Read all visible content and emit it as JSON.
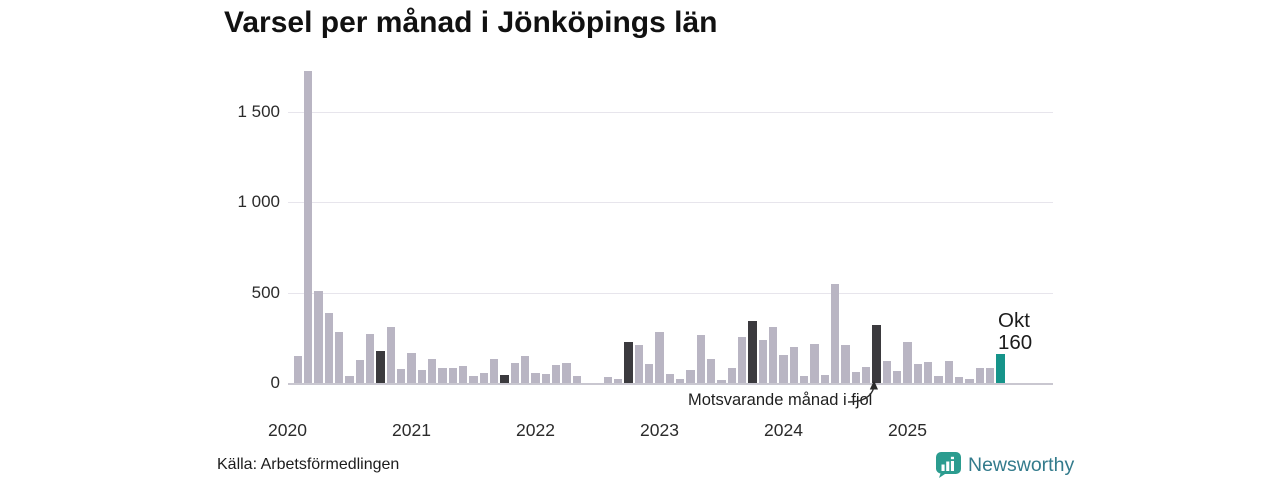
{
  "title": "Varsel per månad i Jönköpings län",
  "source": "Källa: Arbetsförmedlingen",
  "annotation": {
    "text": "Motsvarande månad i fjol",
    "target_month": "2024-10"
  },
  "highlight_label": {
    "month": "Okt",
    "value": "160"
  },
  "branding": {
    "name": "Newsworthy"
  },
  "colors": {
    "bar": "#b9b5c3",
    "bar_fjol": "#3b3a3e",
    "bar_current": "#16948a",
    "grid": "#e7e5ec",
    "baseline": "#c9c7d0",
    "brand_icon": "#2b9c8f",
    "brand_text": "#337b8c"
  },
  "chart_data": {
    "type": "bar",
    "title": "Varsel per månad i Jönköpings län",
    "x_start": "2020-02",
    "x_end": "2025-10",
    "ylim": [
      0,
      1750
    ],
    "yticks": [
      0,
      500,
      1000,
      1500
    ],
    "ytick_labels": [
      "0",
      "500",
      "1 000",
      "1 500"
    ],
    "xtick_labels": [
      "2020",
      "2021",
      "2022",
      "2023",
      "2024",
      "2025"
    ],
    "grid": "horizontal",
    "legend": "none",
    "series": [
      {
        "name": "Varsel per månad",
        "points": [
          {
            "m": "2020-02",
            "v": 150,
            "k": "normal"
          },
          {
            "m": "2020-03",
            "v": 1730,
            "k": "normal"
          },
          {
            "m": "2020-04",
            "v": 510,
            "k": "normal"
          },
          {
            "m": "2020-05",
            "v": 390,
            "k": "normal"
          },
          {
            "m": "2020-06",
            "v": 280,
            "k": "normal"
          },
          {
            "m": "2020-07",
            "v": 40,
            "k": "normal"
          },
          {
            "m": "2020-08",
            "v": 130,
            "k": "normal"
          },
          {
            "m": "2020-09",
            "v": 270,
            "k": "normal"
          },
          {
            "m": "2020-10",
            "v": 180,
            "k": "fjol"
          },
          {
            "m": "2020-11",
            "v": 310,
            "k": "normal"
          },
          {
            "m": "2020-12",
            "v": 80,
            "k": "normal"
          },
          {
            "m": "2021-01",
            "v": 165,
            "k": "normal"
          },
          {
            "m": "2021-02",
            "v": 75,
            "k": "normal"
          },
          {
            "m": "2021-03",
            "v": 135,
            "k": "normal"
          },
          {
            "m": "2021-04",
            "v": 85,
            "k": "normal"
          },
          {
            "m": "2021-05",
            "v": 85,
            "k": "normal"
          },
          {
            "m": "2021-06",
            "v": 95,
            "k": "normal"
          },
          {
            "m": "2021-07",
            "v": 40,
            "k": "normal"
          },
          {
            "m": "2021-08",
            "v": 55,
            "k": "normal"
          },
          {
            "m": "2021-09",
            "v": 135,
            "k": "normal"
          },
          {
            "m": "2021-10",
            "v": 45,
            "k": "fjol"
          },
          {
            "m": "2021-11",
            "v": 110,
            "k": "normal"
          },
          {
            "m": "2021-12",
            "v": 150,
            "k": "normal"
          },
          {
            "m": "2022-01",
            "v": 55,
            "k": "normal"
          },
          {
            "m": "2022-02",
            "v": 50,
            "k": "normal"
          },
          {
            "m": "2022-03",
            "v": 100,
            "k": "normal"
          },
          {
            "m": "2022-04",
            "v": 110,
            "k": "normal"
          },
          {
            "m": "2022-05",
            "v": 40,
            "k": "normal"
          },
          {
            "m": "2022-06",
            "v": 0,
            "k": "normal"
          },
          {
            "m": "2022-07",
            "v": 0,
            "k": "normal"
          },
          {
            "m": "2022-08",
            "v": 35,
            "k": "normal"
          },
          {
            "m": "2022-09",
            "v": 20,
            "k": "normal"
          },
          {
            "m": "2022-10",
            "v": 230,
            "k": "fjol"
          },
          {
            "m": "2022-11",
            "v": 210,
            "k": "normal"
          },
          {
            "m": "2022-12",
            "v": 105,
            "k": "normal"
          },
          {
            "m": "2023-01",
            "v": 285,
            "k": "normal"
          },
          {
            "m": "2023-02",
            "v": 50,
            "k": "normal"
          },
          {
            "m": "2023-03",
            "v": 20,
            "k": "normal"
          },
          {
            "m": "2023-04",
            "v": 70,
            "k": "normal"
          },
          {
            "m": "2023-05",
            "v": 265,
            "k": "normal"
          },
          {
            "m": "2023-06",
            "v": 135,
            "k": "normal"
          },
          {
            "m": "2023-07",
            "v": 15,
            "k": "normal"
          },
          {
            "m": "2023-08",
            "v": 85,
            "k": "normal"
          },
          {
            "m": "2023-09",
            "v": 255,
            "k": "normal"
          },
          {
            "m": "2023-10",
            "v": 345,
            "k": "fjol"
          },
          {
            "m": "2023-11",
            "v": 240,
            "k": "normal"
          },
          {
            "m": "2023-12",
            "v": 310,
            "k": "normal"
          },
          {
            "m": "2024-01",
            "v": 155,
            "k": "normal"
          },
          {
            "m": "2024-02",
            "v": 200,
            "k": "normal"
          },
          {
            "m": "2024-03",
            "v": 40,
            "k": "normal"
          },
          {
            "m": "2024-04",
            "v": 215,
            "k": "normal"
          },
          {
            "m": "2024-05",
            "v": 45,
            "k": "normal"
          },
          {
            "m": "2024-06",
            "v": 550,
            "k": "normal"
          },
          {
            "m": "2024-07",
            "v": 210,
            "k": "normal"
          },
          {
            "m": "2024-08",
            "v": 60,
            "k": "normal"
          },
          {
            "m": "2024-09",
            "v": 90,
            "k": "normal"
          },
          {
            "m": "2024-10",
            "v": 320,
            "k": "fjol"
          },
          {
            "m": "2024-11",
            "v": 120,
            "k": "normal"
          },
          {
            "m": "2024-12",
            "v": 65,
            "k": "normal"
          },
          {
            "m": "2025-01",
            "v": 230,
            "k": "normal"
          },
          {
            "m": "2025-02",
            "v": 105,
            "k": "normal"
          },
          {
            "m": "2025-03",
            "v": 115,
            "k": "normal"
          },
          {
            "m": "2025-04",
            "v": 40,
            "k": "normal"
          },
          {
            "m": "2025-05",
            "v": 120,
            "k": "normal"
          },
          {
            "m": "2025-06",
            "v": 35,
            "k": "normal"
          },
          {
            "m": "2025-07",
            "v": 20,
            "k": "normal"
          },
          {
            "m": "2025-08",
            "v": 85,
            "k": "normal"
          },
          {
            "m": "2025-09",
            "v": 85,
            "k": "normal"
          },
          {
            "m": "2025-10",
            "v": 160,
            "k": "current"
          }
        ]
      }
    ]
  }
}
